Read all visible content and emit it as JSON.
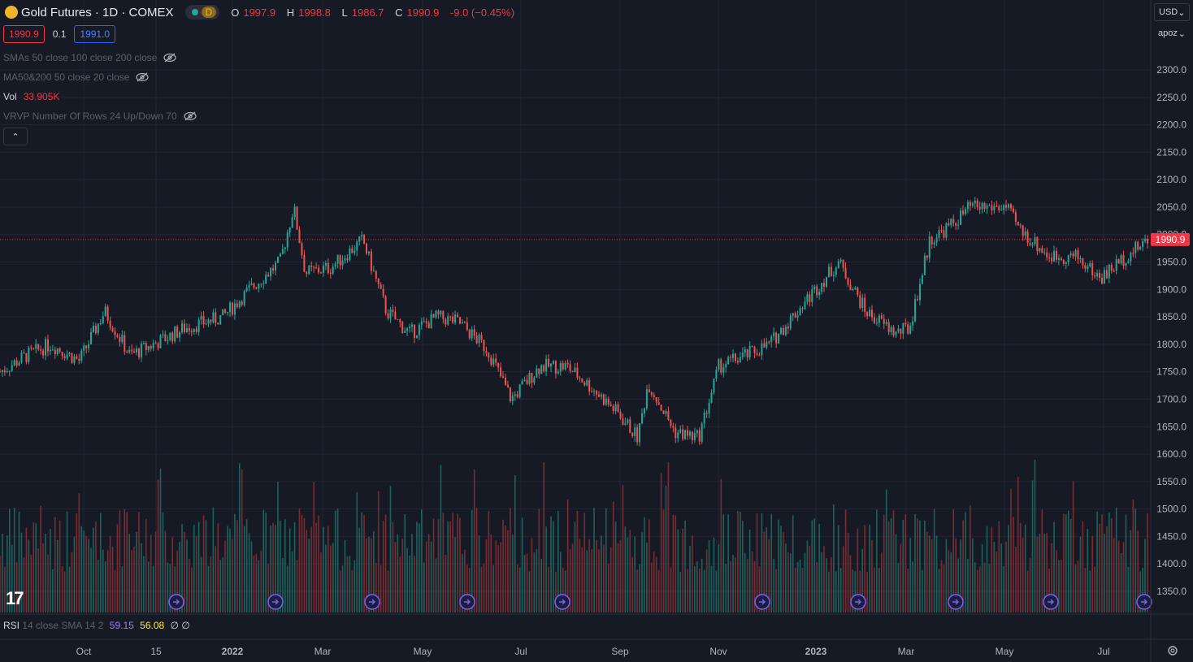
{
  "header": {
    "symbol": "Gold Futures · 1D · COMEX",
    "market_status_letter": "D",
    "ohlc": {
      "o_label": "O",
      "o_value": "1997.9",
      "h_label": "H",
      "h_value": "1998.8",
      "l_label": "L",
      "l_value": "1986.7",
      "c_label": "C",
      "c_value": "1990.9",
      "change": "-9.0 (−0.45%)"
    }
  },
  "trade": {
    "bid": "1990.9",
    "spread": "0.1",
    "ask": "1991.0"
  },
  "indicators": {
    "sma": "SMAs 50 close 100 close 200 close",
    "ma": "MA50&200 50 close 20 close",
    "vol_label": "Vol",
    "vol_value": "33.905K",
    "vrvp": "VRVP Number Of Rows 24 Up/Down 70",
    "collapse_glyph": "⌃"
  },
  "rsi": {
    "label": "RSI",
    "params": "14 close SMA 14 2",
    "value1": "59.15",
    "value2": "56.08",
    "value3": "∅ ∅"
  },
  "scale": {
    "currency": "USD",
    "unit": "apoz"
  },
  "colors": {
    "up": "#26a69a",
    "down": "#ef5350",
    "background": "#161a25",
    "grid": "#232632",
    "price_line": "#f23645",
    "event": "#7b61ff"
  },
  "chart_data": {
    "type": "candlestick",
    "title": "Gold Futures · 1D · COMEX",
    "ylim": [
      1322,
      2335
    ],
    "y_ticks": [
      "2300.0",
      "2250.0",
      "2200.0",
      "2150.0",
      "2100.0",
      "2050.0",
      "2000.0",
      "1950.0",
      "1900.0",
      "1850.0",
      "1800.0",
      "1750.0",
      "1700.0",
      "1650.0",
      "1600.0",
      "1550.0",
      "1500.0",
      "1450.0",
      "1400.0",
      "1350.0"
    ],
    "x_ticks": [
      "Oct",
      "15",
      "2022",
      "Mar",
      "May",
      "Jul",
      "Sep",
      "Nov",
      "2023",
      "Mar",
      "May",
      "Jul"
    ],
    "last_price": "1990.9",
    "series": [
      {
        "name": "price",
        "x": [
          "2021-09-15",
          "2021-10-01",
          "2021-10-15",
          "2021-11-01",
          "2021-11-16",
          "2021-12-01",
          "2021-12-15",
          "2022-01-03",
          "2022-01-25",
          "2022-02-10",
          "2022-02-28",
          "2022-03-08",
          "2022-03-15",
          "2022-03-30",
          "2022-04-18",
          "2022-05-02",
          "2022-05-16",
          "2022-06-01",
          "2022-06-14",
          "2022-07-01",
          "2022-07-15",
          "2022-08-01",
          "2022-08-17",
          "2022-09-01",
          "2022-09-16",
          "2022-09-28",
          "2022-10-04",
          "2022-10-20",
          "2022-11-03",
          "2022-11-15",
          "2022-12-01",
          "2022-12-15",
          "2023-01-03",
          "2023-01-25",
          "2023-02-10",
          "2023-02-28",
          "2023-03-08",
          "2023-03-20",
          "2023-04-03",
          "2023-04-13",
          "2023-05-04",
          "2023-05-12",
          "2023-05-30",
          "2023-06-15",
          "2023-06-29",
          "2023-07-14",
          "2023-07-27"
        ],
        "values": [
          1750,
          1780,
          1800,
          1770,
          1860,
          1780,
          1800,
          1830,
          1850,
          1900,
          1950,
          2050,
          1930,
          1940,
          1990,
          1860,
          1820,
          1850,
          1840,
          1790,
          1700,
          1760,
          1760,
          1720,
          1675,
          1630,
          1730,
          1640,
          1630,
          1760,
          1780,
          1800,
          1870,
          1950,
          1860,
          1820,
          1830,
          1990,
          2020,
          2050,
          2050,
          2010,
          1960,
          1960,
          1920,
          1960,
          1990
        ]
      }
    ]
  }
}
